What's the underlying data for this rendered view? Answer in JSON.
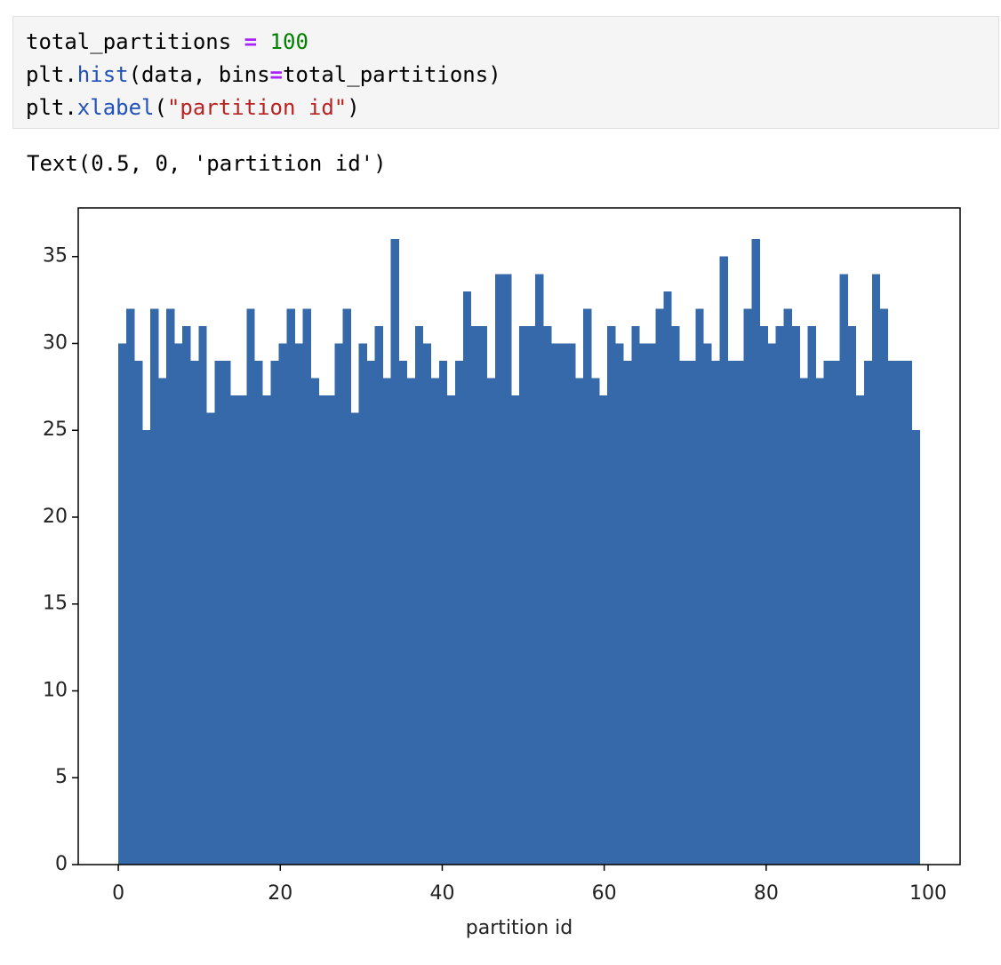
{
  "code": {
    "lines": [
      [
        "total_partitions",
        "=",
        "100"
      ],
      [
        "plt.",
        "hist",
        "(data, bins",
        "=",
        "total_partitions)"
      ],
      [
        "plt.",
        "xlabel",
        "(",
        "\"partition id\"",
        ")"
      ]
    ]
  },
  "output": {
    "text": "Text(0.5, 0, 'partition id')"
  },
  "chart_data": {
    "type": "histogram",
    "xlabel": "partition id",
    "color": "#3669a9",
    "bins": [
      0,
      0.99,
      1.98,
      2.97,
      3.96,
      4.95,
      5.94,
      6.93,
      7.92,
      8.91,
      9.9,
      10.89,
      11.88,
      12.87,
      13.86,
      14.85,
      15.84,
      16.83,
      17.82,
      18.81,
      19.8,
      20.79,
      21.78,
      22.77,
      23.76,
      24.75,
      25.74,
      26.73,
      27.72,
      28.71,
      29.7,
      30.69,
      31.68,
      32.67,
      33.66,
      34.65,
      35.64,
      36.63,
      37.62,
      38.61,
      39.6,
      40.59,
      41.58,
      42.57,
      43.56,
      44.55,
      45.54,
      46.53,
      47.52,
      48.51,
      49.5,
      50.49,
      51.48,
      52.47,
      53.46,
      54.45,
      55.44,
      56.43,
      57.42,
      58.41,
      59.4,
      60.39,
      61.38,
      62.37,
      63.36,
      64.35,
      65.34,
      66.33,
      67.32,
      68.31,
      69.3,
      70.29,
      71.28,
      72.27,
      73.26,
      74.25,
      75.24,
      76.23,
      77.22,
      78.21,
      79.2,
      80.19,
      81.18,
      82.17,
      83.16,
      84.15,
      85.14,
      86.13,
      87.12,
      88.11,
      89.1,
      90.09,
      91.08,
      92.07,
      93.06,
      94.05,
      95.04,
      96.03,
      97.02,
      98.01,
      99
    ],
    "values": [
      30,
      32,
      29,
      25,
      32,
      28,
      32,
      30,
      31,
      29,
      31,
      26,
      29,
      29,
      27,
      27,
      32,
      29,
      27,
      29,
      30,
      32,
      30,
      32,
      28,
      27,
      27,
      30,
      32,
      26,
      30,
      29,
      31,
      28,
      36,
      29,
      28,
      31,
      30,
      28,
      29,
      27,
      29,
      33,
      31,
      31,
      28,
      34,
      34,
      27,
      31,
      31,
      34,
      31,
      30,
      30,
      30,
      28,
      32,
      28,
      27,
      31,
      30,
      29,
      31,
      30,
      30,
      32,
      33,
      31,
      29,
      29,
      32,
      30,
      29,
      35,
      29,
      29,
      32,
      36,
      31,
      30,
      31,
      32,
      31,
      28,
      31,
      28,
      29,
      29,
      34,
      31,
      27,
      29,
      34,
      32,
      29,
      29,
      29,
      25
    ],
    "xlim": [
      -4.95,
      103.95
    ],
    "ylim": [
      0,
      37.8
    ],
    "xticks": [
      0,
      20,
      40,
      60,
      80,
      100
    ],
    "yticks": [
      0,
      5,
      10,
      15,
      20,
      25,
      30,
      35
    ]
  }
}
